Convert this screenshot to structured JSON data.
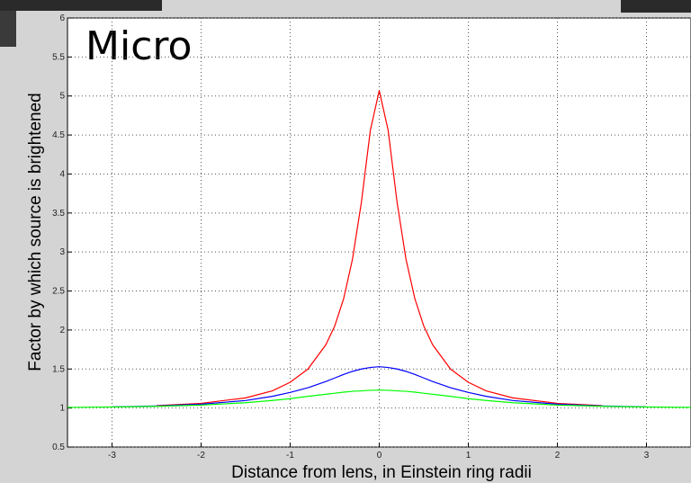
{
  "chart_data": {
    "type": "line",
    "title": "Micro",
    "x_label": "Distance from lens, in Einstein ring radii",
    "y_label": "Factor by which source is brightened",
    "x": [
      -3.5,
      -3,
      -2.5,
      -2,
      -1.5,
      -1.2,
      -1,
      -0.8,
      -0.6,
      -0.5,
      -0.4,
      -0.3,
      -0.2,
      -0.1,
      0,
      0.1,
      0.2,
      0.3,
      0.4,
      0.5,
      0.6,
      0.8,
      1,
      1.2,
      1.5,
      2,
      2.5,
      3,
      3.5
    ],
    "series": [
      {
        "color": "#ff0000",
        "values": [
          null,
          null,
          1.03,
          1.06,
          1.13,
          1.22,
          1.33,
          1.5,
          1.81,
          2.05,
          2.4,
          2.91,
          3.64,
          4.56,
          5.07,
          4.56,
          3.64,
          2.91,
          2.4,
          2.05,
          1.81,
          1.5,
          1.33,
          1.22,
          1.13,
          1.06,
          1.03,
          null,
          null
        ]
      },
      {
        "color": "#0000ff",
        "values": [
          null,
          1.015,
          1.026,
          1.049,
          1.096,
          1.15,
          1.2,
          1.26,
          1.34,
          1.385,
          1.43,
          1.47,
          1.5,
          1.52,
          1.53,
          1.52,
          1.5,
          1.47,
          1.43,
          1.385,
          1.34,
          1.26,
          1.2,
          1.15,
          1.096,
          1.049,
          1.026,
          1.015,
          null
        ]
      },
      {
        "color": "#00ff00",
        "values": [
          1.008,
          1.013,
          1.022,
          1.038,
          1.068,
          1.097,
          1.12,
          1.15,
          1.176,
          1.19,
          1.203,
          1.214,
          1.22,
          1.227,
          1.23,
          1.227,
          1.22,
          1.214,
          1.203,
          1.19,
          1.176,
          1.15,
          1.12,
          1.097,
          1.068,
          1.038,
          1.022,
          1.013,
          1.008
        ]
      }
    ],
    "xlim": [
      -3.5,
      3.5
    ],
    "xticks": [
      -3,
      -2,
      -1,
      0,
      1,
      2,
      3
    ],
    "ylim": [
      0.5,
      6
    ],
    "yticks": [
      0.5,
      1,
      1.5,
      2,
      2.5,
      3,
      3.5,
      4,
      4.5,
      5,
      5.5,
      6
    ],
    "grid": true
  }
}
